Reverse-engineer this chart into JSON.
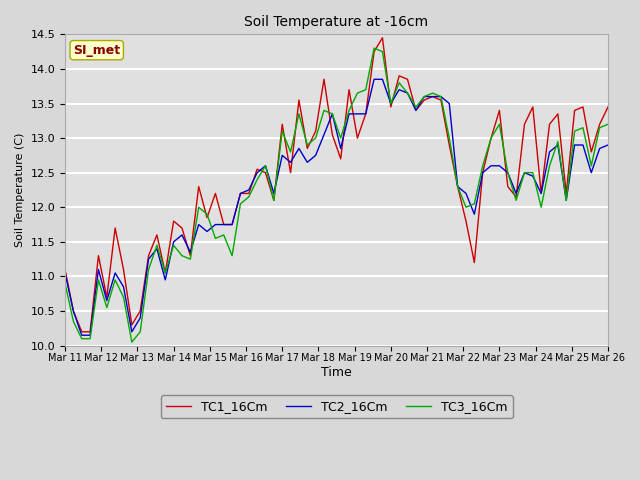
{
  "title": "Soil Temperature at -16cm",
  "xlabel": "Time",
  "ylabel": "Soil Temperature (C)",
  "ylim": [
    10.0,
    14.5
  ],
  "annotation": "SI_met",
  "fig_bg": "#d8d8d8",
  "plot_bg": "#e0e0e0",
  "grid_color": "#ffffff",
  "series": {
    "TC1_16Cm": {
      "color": "#cc0000",
      "lw": 1.0
    },
    "TC2_16Cm": {
      "color": "#0000cc",
      "lw": 1.0
    },
    "TC3_16Cm": {
      "color": "#00aa00",
      "lw": 1.0
    }
  },
  "x_ticks": [
    "Mar 11",
    "Mar 12",
    "Mar 13",
    "Mar 14",
    "Mar 15",
    "Mar 16",
    "Mar 17",
    "Mar 18",
    "Mar 19",
    "Mar 20",
    "Mar 21",
    "Mar 22",
    "Mar 23",
    "Mar 24",
    "Mar 25",
    "Mar 26"
  ],
  "TC1_16Cm": [
    11.1,
    10.5,
    10.2,
    10.2,
    11.3,
    10.7,
    11.7,
    11.1,
    10.3,
    10.5,
    11.3,
    11.6,
    11.05,
    11.8,
    11.7,
    11.3,
    12.3,
    11.85,
    12.2,
    11.75,
    11.75,
    12.2,
    12.2,
    12.55,
    12.5,
    12.1,
    13.2,
    12.5,
    13.55,
    12.85,
    13.1,
    13.85,
    13.05,
    12.7,
    13.7,
    13.0,
    13.35,
    14.25,
    14.45,
    13.45,
    13.9,
    13.85,
    13.4,
    13.55,
    13.6,
    13.55,
    12.9,
    12.3,
    11.8,
    11.2,
    12.5,
    13.0,
    13.4,
    12.3,
    12.15,
    13.2,
    13.45,
    12.2,
    13.2,
    13.35,
    12.2,
    13.4,
    13.45,
    12.8,
    13.2,
    13.45
  ],
  "TC2_16Cm": [
    11.05,
    10.5,
    10.15,
    10.15,
    11.1,
    10.65,
    11.05,
    10.85,
    10.2,
    10.4,
    11.25,
    11.4,
    10.95,
    11.5,
    11.6,
    11.35,
    11.75,
    11.65,
    11.75,
    11.75,
    11.75,
    12.2,
    12.25,
    12.5,
    12.6,
    12.2,
    12.75,
    12.65,
    12.85,
    12.65,
    12.75,
    13.05,
    13.35,
    12.85,
    13.35,
    13.35,
    13.35,
    13.85,
    13.85,
    13.5,
    13.7,
    13.65,
    13.4,
    13.6,
    13.6,
    13.6,
    13.5,
    12.3,
    12.2,
    11.9,
    12.5,
    12.6,
    12.6,
    12.5,
    12.2,
    12.5,
    12.45,
    12.2,
    12.8,
    12.9,
    12.1,
    12.9,
    12.9,
    12.5,
    12.85,
    12.9
  ],
  "TC3_16Cm": [
    10.9,
    10.35,
    10.1,
    10.1,
    10.95,
    10.55,
    10.95,
    10.7,
    10.05,
    10.2,
    11.1,
    11.45,
    11.05,
    11.45,
    11.3,
    11.25,
    12.0,
    11.9,
    11.55,
    11.6,
    11.3,
    12.05,
    12.15,
    12.4,
    12.6,
    12.1,
    13.1,
    12.8,
    13.35,
    12.9,
    13.0,
    13.4,
    13.35,
    13.0,
    13.4,
    13.65,
    13.7,
    14.3,
    14.25,
    13.5,
    13.8,
    13.65,
    13.45,
    13.6,
    13.65,
    13.6,
    13.0,
    12.3,
    12.0,
    12.05,
    12.6,
    13.0,
    13.2,
    12.5,
    12.1,
    12.5,
    12.5,
    12.0,
    12.6,
    12.95,
    12.1,
    13.1,
    13.15,
    12.6,
    13.15,
    13.2
  ]
}
